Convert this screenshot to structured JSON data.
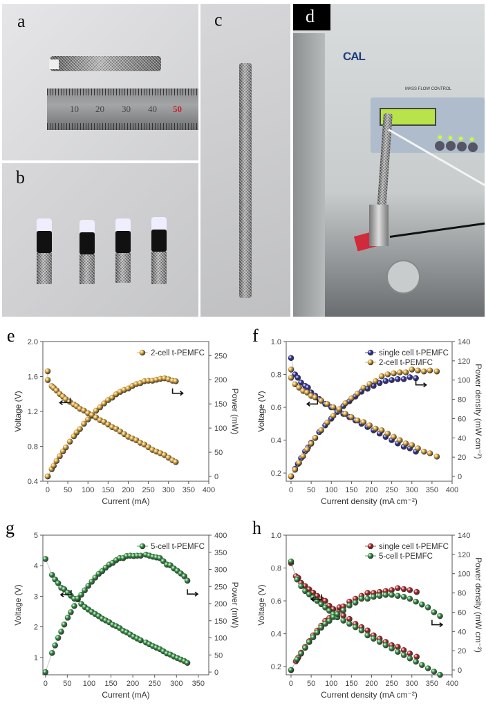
{
  "panels": {
    "a": {
      "label": "a",
      "ruler_numbers": [
        "10",
        "20",
        "30",
        "40",
        "50"
      ]
    },
    "b": {
      "label": "b"
    },
    "c": {
      "label": "c"
    },
    "d": {
      "label": "d",
      "logo": "CAL",
      "device_label": "MASS FLOW CONTROL"
    }
  },
  "colors": {
    "orange": "#d6a033",
    "blue": "#26269a",
    "green": "#2c8a3c",
    "red": "#aa1c1c",
    "teal": "#2a9a74"
  },
  "chart_data": [
    {
      "panel": "e",
      "type": "scatter",
      "xlabel": "Current (mA)",
      "ylabel_left": "Voltage (V)",
      "ylabel_right": "Power (mW)",
      "xlim": [
        -12,
        400
      ],
      "ylim_left": [
        0.4,
        2.0
      ],
      "ylim_right": [
        -10,
        279
      ],
      "xticks": [
        0,
        50,
        100,
        150,
        200,
        250,
        300,
        350,
        400
      ],
      "yticks_left": [
        "0.4",
        "0.8",
        "1.2",
        "1.6",
        "2.0"
      ],
      "yticks_right": [
        0,
        50,
        100,
        150,
        200,
        250
      ],
      "legend": "top-right",
      "grid": false,
      "series": [
        {
          "name": "2-cell t-PEMFC",
          "color": "#d6a033",
          "x": [
            0,
            0,
            10,
            15,
            22,
            30,
            38,
            45,
            55,
            65,
            72,
            80,
            90,
            100,
            110,
            120,
            130,
            140,
            150,
            160,
            170,
            180,
            190,
            200,
            210,
            220,
            230,
            240,
            250,
            260,
            270,
            280,
            290,
            300,
            310,
            318
          ],
          "voltage": [
            1.66,
            1.56,
            1.49,
            1.47,
            1.44,
            1.4,
            1.37,
            1.34,
            1.31,
            1.28,
            1.26,
            1.23,
            1.21,
            1.18,
            1.15,
            1.13,
            1.1,
            1.08,
            1.05,
            1.02,
            1.0,
            0.97,
            0.94,
            0.91,
            0.89,
            0.87,
            0.84,
            0.82,
            0.79,
            0.76,
            0.74,
            0.72,
            0.7,
            0.67,
            0.64,
            0.62
          ],
          "power": [
            0,
            0,
            15,
            22,
            32,
            42,
            52,
            60,
            72,
            83,
            91,
            98,
            109,
            118,
            127,
            136,
            143,
            151,
            158,
            163,
            170,
            175,
            179,
            182,
            187,
            191,
            193,
            197,
            198,
            198,
            200,
            202,
            203,
            201,
            198,
            197
          ]
        }
      ]
    },
    {
      "panel": "f",
      "type": "scatter",
      "xlabel": "Current density (mA cm⁻²)",
      "ylabel_left": "Voltage (V)",
      "ylabel_right": "Power density (mW cm⁻²)",
      "xlim": [
        -12,
        400
      ],
      "ylim_left": [
        0.15,
        1.0
      ],
      "ylim_right": [
        -5,
        140
      ],
      "xticks": [
        0,
        50,
        100,
        150,
        200,
        250,
        300,
        350,
        400
      ],
      "yticks_left": [
        "0.2",
        "0.4",
        "0.6",
        "0.8",
        "1.0"
      ],
      "yticks_right": [
        0,
        20,
        40,
        60,
        80,
        100,
        120,
        140
      ],
      "legend": "top-right",
      "grid": false,
      "series": [
        {
          "name": "single cell t-PEMFC",
          "color": "#26269a",
          "x": [
            0,
            10,
            17,
            25,
            35,
            42,
            50,
            60,
            70,
            85,
            100,
            115,
            130,
            145,
            160,
            175,
            190,
            205,
            220,
            235,
            250,
            265,
            280,
            295,
            310
          ],
          "voltage": [
            0.9,
            0.8,
            0.78,
            0.75,
            0.73,
            0.72,
            0.69,
            0.67,
            0.65,
            0.62,
            0.6,
            0.58,
            0.56,
            0.54,
            0.52,
            0.5,
            0.48,
            0.46,
            0.44,
            0.42,
            0.4,
            0.38,
            0.36,
            0.35,
            0.33
          ],
          "power": [
            0,
            8,
            13,
            19,
            26,
            30,
            35,
            40,
            46,
            53,
            60,
            67,
            73,
            78,
            83,
            88,
            91,
            94,
            97,
            99,
            100,
            101,
            101,
            103,
            102
          ]
        },
        {
          "name": "2-cell t-PEMFC",
          "color": "#d6a033",
          "x": [
            0,
            0,
            10,
            20,
            30,
            40,
            50,
            60,
            75,
            90,
            105,
            120,
            135,
            150,
            165,
            180,
            195,
            210,
            225,
            240,
            255,
            270,
            285,
            300,
            315,
            330,
            345,
            362
          ],
          "voltage": [
            0.83,
            0.78,
            0.74,
            0.72,
            0.7,
            0.69,
            0.67,
            0.66,
            0.64,
            0.62,
            0.6,
            0.58,
            0.56,
            0.54,
            0.52,
            0.51,
            0.49,
            0.47,
            0.46,
            0.44,
            0.42,
            0.4,
            0.38,
            0.37,
            0.35,
            0.33,
            0.32,
            0.3
          ],
          "power": [
            0,
            0,
            7,
            14,
            21,
            28,
            34,
            40,
            48,
            56,
            63,
            70,
            76,
            81,
            86,
            92,
            96,
            99,
            104,
            106,
            107,
            108,
            108,
            111,
            110,
            109,
            110,
            109
          ]
        }
      ]
    },
    {
      "panel": "g",
      "type": "scatter",
      "xlabel": "Current (mA)",
      "ylabel_left": "Voltage (V)",
      "ylabel_right": "Power (mW)",
      "xlim": [
        -6,
        374
      ],
      "ylim_left": [
        0.43,
        5.0
      ],
      "ylim_right": [
        -8,
        400
      ],
      "xticks": [
        0,
        50,
        100,
        150,
        200,
        250,
        300,
        350
      ],
      "yticks_left": [
        "1",
        "2",
        "3",
        "4",
        "5"
      ],
      "yticks_right": [
        0,
        50,
        100,
        150,
        200,
        250,
        300,
        350,
        400
      ],
      "legend": "top-right",
      "grid": false,
      "series": [
        {
          "name": "5-cell t-PEMFC",
          "color": "#2c8a3c",
          "x": [
            0,
            15,
            22,
            29,
            36,
            43,
            51,
            58,
            66,
            74,
            82,
            90,
            98,
            106,
            114,
            122,
            130,
            138,
            146,
            154,
            162,
            170,
            178,
            186,
            194,
            202,
            210,
            218,
            230,
            238,
            246,
            254,
            262,
            270,
            278,
            286,
            294,
            302,
            310,
            318,
            325
          ],
          "voltage": [
            4.22,
            3.7,
            3.55,
            3.43,
            3.28,
            3.23,
            3.12,
            3.02,
            2.92,
            2.9,
            2.75,
            2.65,
            2.57,
            2.49,
            2.42,
            2.35,
            2.27,
            2.21,
            2.15,
            2.07,
            2.02,
            1.96,
            1.87,
            1.82,
            1.75,
            1.68,
            1.62,
            1.56,
            1.49,
            1.43,
            1.37,
            1.32,
            1.27,
            1.2,
            1.13,
            1.09,
            1.03,
            0.98,
            0.93,
            0.88,
            0.82
          ],
          "power": [
            0,
            56,
            78,
            100,
            118,
            139,
            159,
            175,
            193,
            215,
            226,
            239,
            252,
            264,
            276,
            287,
            295,
            305,
            314,
            319,
            327,
            333,
            333,
            339,
            340,
            339,
            340,
            340,
            343,
            340,
            337,
            335,
            333,
            324,
            314,
            312,
            303,
            296,
            288,
            280,
            267
          ]
        }
      ]
    },
    {
      "panel": "h",
      "type": "scatter",
      "xlabel": "Current density (mA cm⁻²)",
      "ylabel_left": "Voltage (V)",
      "ylabel_right": "Power density (mW cm⁻²)",
      "xlim": [
        -12,
        400
      ],
      "ylim_left": [
        0.15,
        1.0
      ],
      "ylim_right": [
        -5,
        140
      ],
      "xticks": [
        0,
        50,
        100,
        150,
        200,
        250,
        300,
        350,
        400
      ],
      "yticks_left": [
        "0.2",
        "0.4",
        "0.6",
        "0.8",
        "1.0"
      ],
      "yticks_right": [
        0,
        20,
        40,
        60,
        80,
        100,
        120,
        140
      ],
      "legend": "top-right",
      "grid": false,
      "series": [
        {
          "name": "single cell t-PEMFC",
          "color": "#aa1c1c",
          "x": [
            0,
            12,
            18,
            25,
            35,
            45,
            55,
            65,
            75,
            85,
            95,
            105,
            120,
            130,
            145,
            160,
            175,
            190,
            205,
            220,
            235,
            250,
            265,
            280,
            295,
            312
          ],
          "voltage": [
            0.83,
            0.75,
            0.74,
            0.71,
            0.69,
            0.67,
            0.65,
            0.63,
            0.61,
            0.6,
            0.57,
            0.55,
            0.54,
            0.51,
            0.49,
            0.46,
            0.44,
            0.42,
            0.39,
            0.37,
            0.35,
            0.33,
            0.32,
            0.3,
            0.28,
            0.26
          ],
          "power": [
            0,
            9,
            13,
            18,
            24,
            30,
            36,
            41,
            46,
            51,
            54,
            58,
            65,
            66,
            71,
            74,
            77,
            80,
            80,
            81,
            82,
            83,
            85,
            84,
            83,
            81
          ]
        },
        {
          "name": "5-cell t-PEMFC",
          "color": "#2c8a3c",
          "x": [
            0,
            15,
            25,
            35,
            45,
            55,
            65,
            75,
            85,
            95,
            105,
            115,
            130,
            145,
            160,
            175,
            190,
            205,
            220,
            235,
            250,
            265,
            280,
            295,
            310,
            325,
            340,
            355,
            370
          ],
          "voltage": [
            0.84,
            0.73,
            0.69,
            0.66,
            0.64,
            0.62,
            0.6,
            0.58,
            0.56,
            0.54,
            0.52,
            0.5,
            0.48,
            0.46,
            0.44,
            0.42,
            0.39,
            0.37,
            0.35,
            0.33,
            0.31,
            0.29,
            0.27,
            0.25,
            0.23,
            0.21,
            0.19,
            0.17,
            0.15
          ],
          "power": [
            0,
            11,
            17,
            23,
            29,
            34,
            39,
            44,
            48,
            51,
            55,
            58,
            62,
            67,
            70,
            74,
            74,
            76,
            77,
            78,
            78,
            77,
            76,
            74,
            71,
            68,
            65,
            60,
            56
          ]
        }
      ]
    }
  ]
}
